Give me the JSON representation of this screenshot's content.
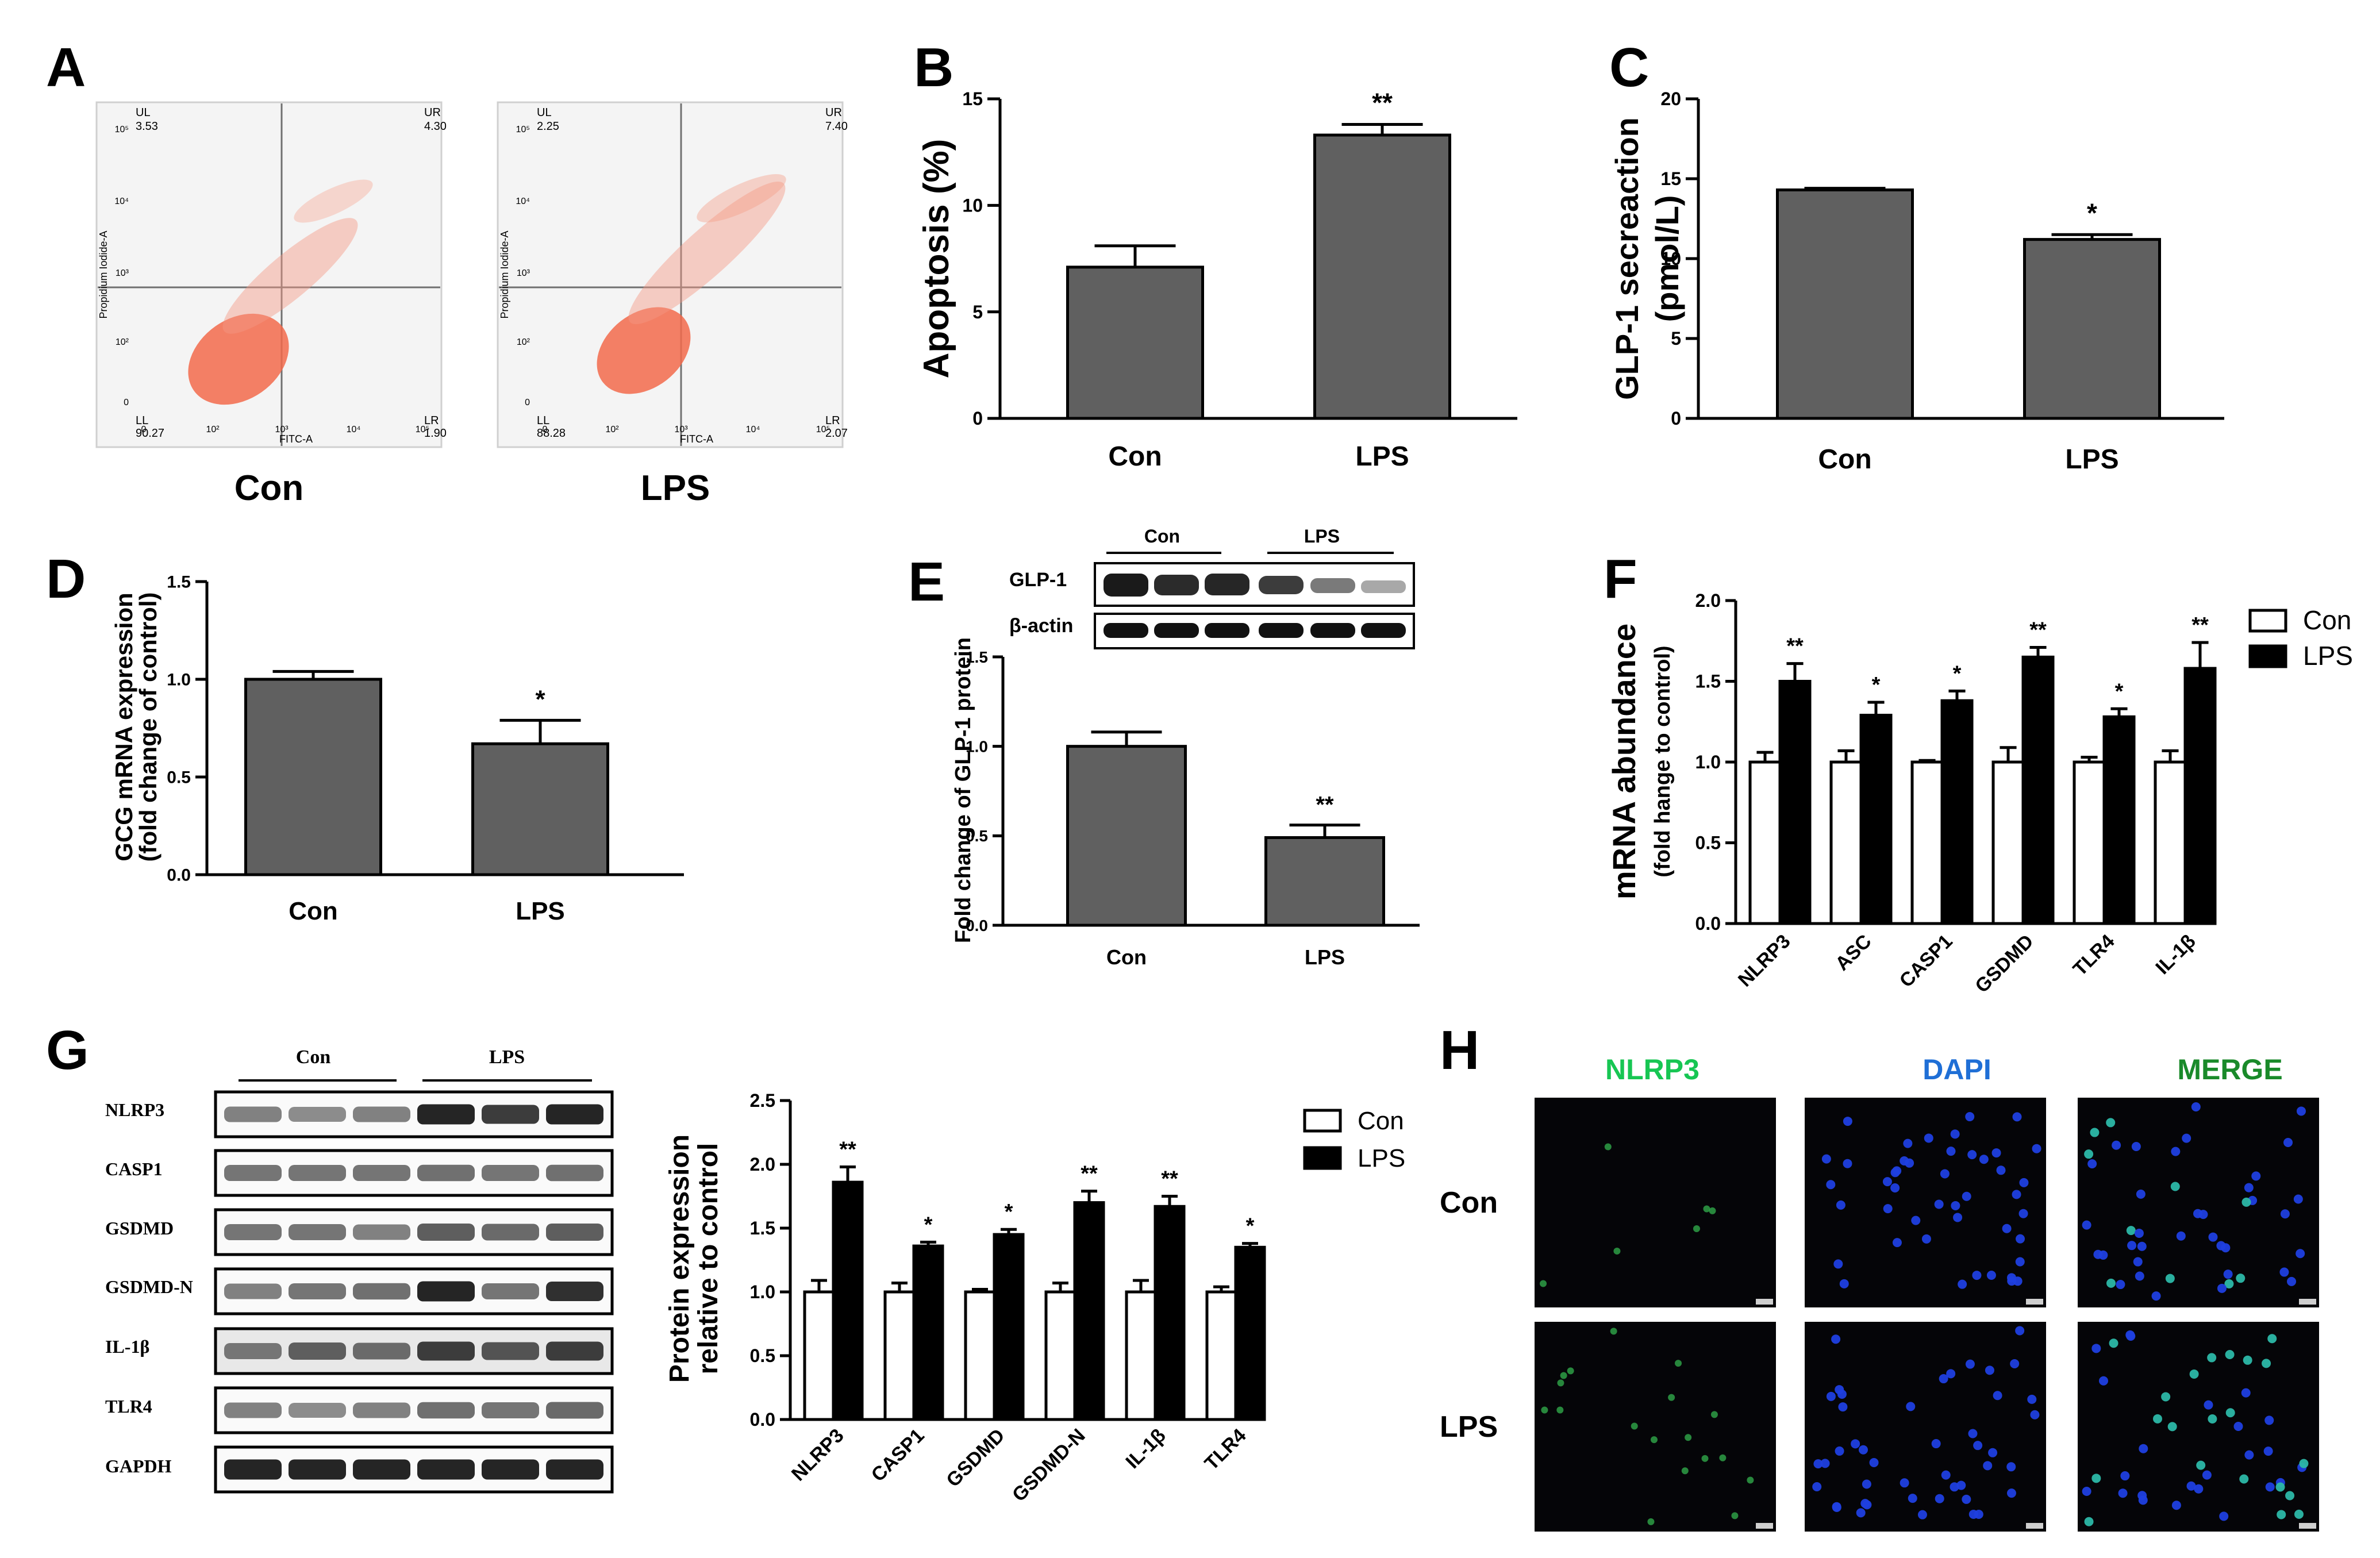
{
  "panels": {
    "A": {
      "letter": "A",
      "plots": [
        {
          "group": "Con",
          "UL": "UL",
          "UL_val": "3.53",
          "UR": "UR",
          "UR_val": "4.30",
          "LL": "LL",
          "LL_val": "90.27",
          "LR": "LR",
          "LR_val": "1.90",
          "xlabel": "FITC-A",
          "ylabel": "Propidium Iodide-A"
        },
        {
          "group": "LPS",
          "UL": "UL",
          "UL_val": "2.25",
          "UR": "UR",
          "UR_val": "7.40",
          "LL": "LL",
          "LL_val": "88.28",
          "LR": "LR",
          "LR_val": "2.07",
          "xlabel": "FITC-A",
          "ylabel": "Propidium Iodide-A"
        }
      ],
      "xticks": [
        "0",
        "10²",
        "10³",
        "10⁴",
        "10⁵"
      ],
      "yticks": [
        "10⁵",
        "10⁴",
        "10³",
        "10²",
        "0"
      ]
    },
    "E": {
      "blot_labels": [
        "GLP-1",
        "β-actin"
      ],
      "groups": [
        "Con",
        "LPS"
      ]
    },
    "G": {
      "blot_labels": [
        "NLRP3",
        "CASP1",
        "GSDMD",
        "GSDMD-N",
        "IL-1β",
        "TLR4",
        "GAPDH"
      ],
      "groups": [
        "Con",
        "LPS"
      ]
    },
    "H": {
      "letter": "H",
      "columns": [
        "NLRP3",
        "DAPI",
        "MERGE"
      ],
      "rows": [
        "Con",
        "LPS"
      ],
      "column_colors": [
        "#17c653",
        "#1f6fd6",
        "#1a8a2a"
      ]
    }
  },
  "chart_data": [
    {
      "id": "B",
      "letter": "B",
      "type": "bar",
      "categories": [
        "Con",
        "LPS"
      ],
      "values": [
        7.1,
        13.3
      ],
      "errors": [
        1.0,
        0.5
      ],
      "significance": [
        "",
        "**"
      ],
      "ylabel": "Apoptosis (%)",
      "ylabel2": "",
      "xlabel": "",
      "ylim": [
        0,
        15
      ],
      "yticks": [
        "0",
        "5",
        "10",
        "15"
      ],
      "bar_color": "#606060"
    },
    {
      "id": "C",
      "letter": "C",
      "type": "bar",
      "categories": [
        "Con",
        "LPS"
      ],
      "values": [
        14.3,
        11.2
      ],
      "errors": [
        0.1,
        0.3
      ],
      "significance": [
        "",
        "*"
      ],
      "ylabel": "GLP-1 secreaction",
      "ylabel2": "(pmol/L)",
      "xlabel": "",
      "ylim": [
        0,
        20
      ],
      "yticks": [
        "0",
        "5",
        "10",
        "15",
        "20"
      ],
      "bar_color": "#606060"
    },
    {
      "id": "D",
      "letter": "D",
      "type": "bar",
      "categories": [
        "Con",
        "LPS"
      ],
      "values": [
        1.0,
        0.67
      ],
      "errors": [
        0.04,
        0.12
      ],
      "significance": [
        "",
        "*"
      ],
      "ylabel": "GCG mRNA expression",
      "ylabel2": "(fold change of control)",
      "xlabel": "",
      "ylim": [
        0,
        1.5
      ],
      "yticks": [
        "0.0",
        "0.5",
        "1.0",
        "1.5"
      ],
      "bar_color": "#606060"
    },
    {
      "id": "E",
      "letter": "E",
      "type": "bar",
      "categories": [
        "Con",
        "LPS"
      ],
      "values": [
        1.0,
        0.49
      ],
      "errors": [
        0.08,
        0.07
      ],
      "significance": [
        "",
        "**"
      ],
      "ylabel": "Fold change of GLP-1 protein",
      "ylabel2": "",
      "xlabel": "",
      "ylim": [
        0,
        1.5
      ],
      "yticks": [
        "0.0",
        "0.5",
        "1.0",
        "1.5"
      ],
      "bar_color": "#606060"
    },
    {
      "id": "F",
      "letter": "F",
      "type": "bar",
      "categories": [
        "NLRP3",
        "ASC",
        "CASP1",
        "GSDMD",
        "TLR4",
        "IL-1β"
      ],
      "series": [
        {
          "name": "Con",
          "values": [
            1.0,
            1.0,
            1.0,
            1.0,
            1.0,
            1.0
          ],
          "errors": [
            0.06,
            0.07,
            0.01,
            0.09,
            0.03,
            0.07
          ],
          "color": "#ffffff"
        },
        {
          "name": "LPS",
          "values": [
            1.5,
            1.29,
            1.38,
            1.65,
            1.28,
            1.58
          ],
          "errors": [
            0.11,
            0.08,
            0.06,
            0.06,
            0.05,
            0.16
          ],
          "color": "#000000"
        }
      ],
      "significance": [
        "**",
        "*",
        "*",
        "**",
        "*",
        "**"
      ],
      "ylabel": "mRNA abundance",
      "ylabel2": "(fold hange to control)",
      "ylim": [
        0,
        2.0
      ],
      "yticks": [
        "0.0",
        "0.5",
        "1.0",
        "1.5",
        "2.0"
      ],
      "legend": "top-right"
    },
    {
      "id": "G",
      "letter": "G",
      "type": "bar",
      "categories": [
        "NLRP3",
        "CASP1",
        "GSDMD",
        "GSDMD-N",
        "IL-1β",
        "TLR4"
      ],
      "series": [
        {
          "name": "Con",
          "values": [
            1.0,
            1.0,
            1.0,
            1.0,
            1.0,
            1.0
          ],
          "errors": [
            0.09,
            0.07,
            0.02,
            0.07,
            0.09,
            0.04
          ],
          "color": "#ffffff"
        },
        {
          "name": "LPS",
          "values": [
            1.86,
            1.36,
            1.45,
            1.7,
            1.67,
            1.35
          ],
          "errors": [
            0.12,
            0.03,
            0.04,
            0.09,
            0.08,
            0.03
          ],
          "color": "#000000"
        }
      ],
      "significance": [
        "**",
        "*",
        "*",
        "**",
        "**",
        "*"
      ],
      "ylabel": "Protein expression",
      "ylabel2": "relative to control",
      "ylim": [
        0,
        2.5
      ],
      "yticks": [
        "0.0",
        "0.5",
        "1.0",
        "1.5",
        "2.0",
        "2.5"
      ],
      "legend": "top-right"
    }
  ]
}
